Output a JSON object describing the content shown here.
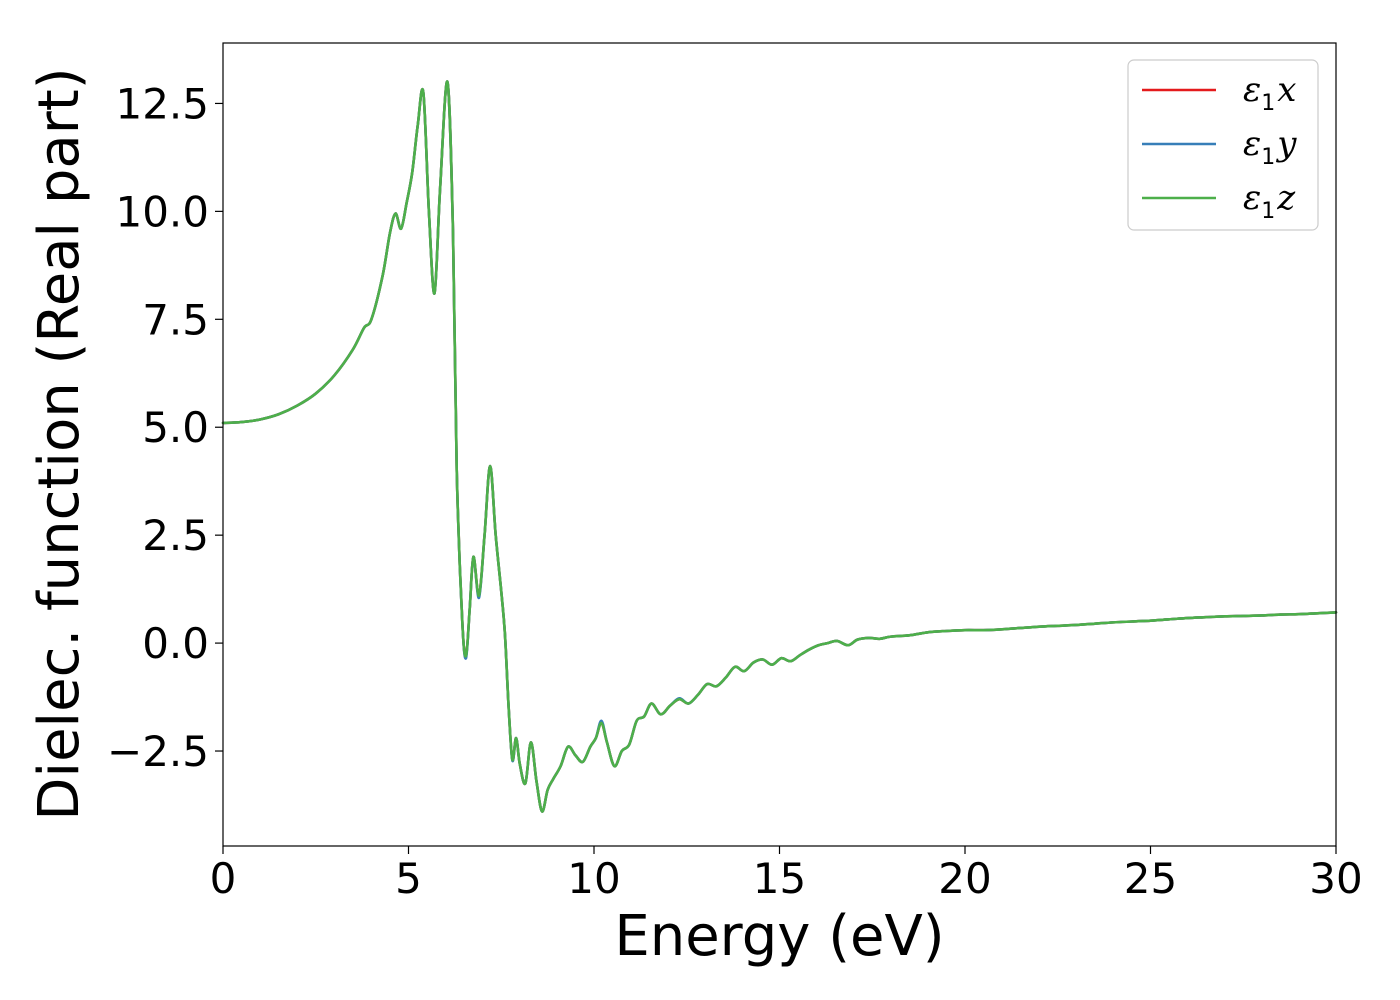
{
  "chart_data": {
    "type": "line",
    "title": "",
    "xlabel": "Energy (eV)",
    "ylabel": "Dielec. function (Real part)",
    "xlim": [
      0,
      30
    ],
    "ylim": [
      -4.7,
      13.9
    ],
    "xticks": [
      0,
      5,
      10,
      15,
      20,
      25,
      30
    ],
    "xtick_labels": [
      "0",
      "5",
      "10",
      "15",
      "20",
      "25",
      "30"
    ],
    "yticks": [
      -2.5,
      0.0,
      2.5,
      5.0,
      7.5,
      10.0,
      12.5
    ],
    "ytick_labels": [
      "−2.5",
      "0.0",
      "2.5",
      "5.0",
      "7.5",
      "10.0",
      "12.5"
    ],
    "grid": false,
    "legend_position": "top-right",
    "series": [
      {
        "name": "ε₁x",
        "legend_main": "ε",
        "legend_sub": "1",
        "legend_var": "x",
        "color": "#e41a1c",
        "x": [
          0,
          0.5,
          1.0,
          1.5,
          2.0,
          2.5,
          3.0,
          3.5,
          3.8,
          4.0,
          4.3,
          4.5,
          4.65,
          4.8,
          4.95,
          5.1,
          5.25,
          5.4,
          5.55,
          5.7,
          5.85,
          6.05,
          6.2,
          6.3,
          6.45,
          6.55,
          6.65,
          6.75,
          6.9,
          7.05,
          7.2,
          7.35,
          7.5,
          7.6,
          7.7,
          7.8,
          7.9,
          8.0,
          8.15,
          8.3,
          8.45,
          8.6,
          8.75,
          8.9,
          9.1,
          9.3,
          9.5,
          9.7,
          9.9,
          10.05,
          10.2,
          10.35,
          10.55,
          10.75,
          10.95,
          11.15,
          11.35,
          11.55,
          11.8,
          12.05,
          12.3,
          12.55,
          12.8,
          13.05,
          13.3,
          13.55,
          13.8,
          14.05,
          14.3,
          14.55,
          14.8,
          15.05,
          15.3,
          15.55,
          15.8,
          16.05,
          16.3,
          16.55,
          16.85,
          17.1,
          17.4,
          17.7,
          18.0,
          18.5,
          19.0,
          19.5,
          20.0,
          20.5,
          21.0,
          21.5,
          22.0,
          22.5,
          23.0,
          23.5,
          24.0,
          24.5,
          25.0,
          25.5,
          26.0,
          26.5,
          27.0,
          27.5,
          28.0,
          28.5,
          29.0,
          29.5,
          30.0
        ],
        "y": [
          5.1,
          5.12,
          5.18,
          5.3,
          5.5,
          5.78,
          6.2,
          6.8,
          7.3,
          7.5,
          8.5,
          9.5,
          9.95,
          9.6,
          10.2,
          10.9,
          12.0,
          12.75,
          10.0,
          8.1,
          10.5,
          13.0,
          9.5,
          4.0,
          0.5,
          -0.3,
          0.8,
          2.0,
          1.1,
          2.5,
          4.1,
          2.5,
          1.2,
          0.2,
          -1.5,
          -2.7,
          -2.2,
          -2.8,
          -3.25,
          -2.3,
          -3.2,
          -3.9,
          -3.4,
          -3.15,
          -2.85,
          -2.4,
          -2.6,
          -2.75,
          -2.4,
          -2.2,
          -1.85,
          -2.3,
          -2.85,
          -2.5,
          -2.35,
          -1.8,
          -1.7,
          -1.4,
          -1.65,
          -1.45,
          -1.3,
          -1.4,
          -1.2,
          -0.95,
          -1.0,
          -0.8,
          -0.55,
          -0.65,
          -0.45,
          -0.38,
          -0.5,
          -0.35,
          -0.42,
          -0.28,
          -0.15,
          -0.05,
          0.0,
          0.05,
          -0.05,
          0.08,
          0.12,
          0.1,
          0.15,
          0.18,
          0.25,
          0.28,
          0.3,
          0.3,
          0.32,
          0.35,
          0.38,
          0.4,
          0.42,
          0.45,
          0.48,
          0.5,
          0.52,
          0.55,
          0.58,
          0.6,
          0.62,
          0.63,
          0.64,
          0.66,
          0.67,
          0.69,
          0.71
        ]
      },
      {
        "name": "ε₁y",
        "legend_main": "ε",
        "legend_sub": "1",
        "legend_var": "y",
        "color": "#377eb8",
        "x": [
          0,
          0.5,
          1.0,
          1.5,
          2.0,
          2.5,
          3.0,
          3.5,
          3.8,
          4.0,
          4.3,
          4.5,
          4.65,
          4.8,
          4.95,
          5.1,
          5.25,
          5.4,
          5.55,
          5.7,
          5.85,
          6.05,
          6.2,
          6.3,
          6.45,
          6.55,
          6.65,
          6.75,
          6.9,
          7.05,
          7.2,
          7.35,
          7.5,
          7.6,
          7.7,
          7.8,
          7.9,
          8.0,
          8.15,
          8.3,
          8.45,
          8.6,
          8.75,
          8.9,
          9.1,
          9.3,
          9.5,
          9.7,
          9.9,
          10.05,
          10.2,
          10.35,
          10.55,
          10.75,
          10.95,
          11.15,
          11.35,
          11.55,
          11.8,
          12.05,
          12.3,
          12.55,
          12.8,
          13.05,
          13.3,
          13.55,
          13.8,
          14.05,
          14.3,
          14.55,
          14.8,
          15.05,
          15.3,
          15.55,
          15.8,
          16.05,
          16.3,
          16.55,
          16.85,
          17.1,
          17.4,
          17.7,
          18.0,
          18.5,
          19.0,
          19.5,
          20.0,
          20.5,
          21.0,
          21.5,
          22.0,
          22.5,
          23.0,
          23.5,
          24.0,
          24.5,
          25.0,
          25.5,
          26.0,
          26.5,
          27.0,
          27.5,
          28.0,
          28.5,
          29.0,
          29.5,
          30.0
        ],
        "y": [
          5.1,
          5.12,
          5.18,
          5.3,
          5.5,
          5.78,
          6.2,
          6.8,
          7.3,
          7.5,
          8.5,
          9.5,
          9.95,
          9.6,
          10.2,
          10.9,
          12.0,
          12.75,
          10.0,
          8.1,
          10.5,
          13.0,
          9.5,
          4.0,
          0.5,
          -0.35,
          0.8,
          2.0,
          1.05,
          2.5,
          4.1,
          2.5,
          1.2,
          0.2,
          -1.5,
          -2.72,
          -2.2,
          -2.8,
          -3.25,
          -2.3,
          -3.2,
          -3.9,
          -3.4,
          -3.15,
          -2.85,
          -2.4,
          -2.6,
          -2.75,
          -2.4,
          -2.2,
          -1.8,
          -2.3,
          -2.85,
          -2.5,
          -2.35,
          -1.8,
          -1.7,
          -1.4,
          -1.65,
          -1.45,
          -1.28,
          -1.4,
          -1.2,
          -0.95,
          -1.0,
          -0.8,
          -0.55,
          -0.65,
          -0.45,
          -0.38,
          -0.5,
          -0.35,
          -0.42,
          -0.28,
          -0.15,
          -0.05,
          0.0,
          0.05,
          -0.05,
          0.08,
          0.12,
          0.1,
          0.15,
          0.18,
          0.25,
          0.28,
          0.3,
          0.3,
          0.32,
          0.35,
          0.38,
          0.4,
          0.42,
          0.45,
          0.48,
          0.5,
          0.52,
          0.55,
          0.58,
          0.6,
          0.62,
          0.63,
          0.64,
          0.66,
          0.67,
          0.69,
          0.71
        ]
      },
      {
        "name": "ε₁z",
        "legend_main": "ε",
        "legend_sub": "1",
        "legend_var": "z",
        "color": "#4daf4a",
        "x": [
          0,
          0.5,
          1.0,
          1.5,
          2.0,
          2.5,
          3.0,
          3.5,
          3.8,
          4.0,
          4.3,
          4.5,
          4.65,
          4.8,
          4.95,
          5.1,
          5.25,
          5.4,
          5.55,
          5.7,
          5.85,
          6.05,
          6.2,
          6.3,
          6.45,
          6.55,
          6.65,
          6.75,
          6.9,
          7.05,
          7.2,
          7.35,
          7.5,
          7.6,
          7.7,
          7.8,
          7.9,
          8.0,
          8.15,
          8.3,
          8.45,
          8.6,
          8.75,
          8.9,
          9.1,
          9.3,
          9.5,
          9.7,
          9.9,
          10.05,
          10.2,
          10.35,
          10.55,
          10.75,
          10.95,
          11.15,
          11.35,
          11.55,
          11.8,
          12.05,
          12.3,
          12.55,
          12.8,
          13.05,
          13.3,
          13.55,
          13.8,
          14.05,
          14.3,
          14.55,
          14.8,
          15.05,
          15.3,
          15.55,
          15.8,
          16.05,
          16.3,
          16.55,
          16.85,
          17.1,
          17.4,
          17.7,
          18.0,
          18.5,
          19.0,
          19.5,
          20.0,
          20.5,
          21.0,
          21.5,
          22.0,
          22.5,
          23.0,
          23.5,
          24.0,
          24.5,
          25.0,
          25.5,
          26.0,
          26.5,
          27.0,
          27.5,
          28.0,
          28.5,
          29.0,
          29.5,
          30.0
        ],
        "y": [
          5.1,
          5.12,
          5.18,
          5.3,
          5.5,
          5.78,
          6.2,
          6.8,
          7.3,
          7.5,
          8.5,
          9.5,
          9.95,
          9.6,
          10.2,
          10.9,
          12.0,
          12.75,
          10.0,
          8.1,
          10.5,
          13.0,
          9.5,
          4.0,
          0.5,
          -0.3,
          0.8,
          2.0,
          1.1,
          2.5,
          4.1,
          2.5,
          1.2,
          0.2,
          -1.5,
          -2.7,
          -2.2,
          -2.8,
          -3.25,
          -2.3,
          -3.2,
          -3.9,
          -3.4,
          -3.15,
          -2.85,
          -2.4,
          -2.6,
          -2.75,
          -2.4,
          -2.2,
          -1.85,
          -2.3,
          -2.85,
          -2.5,
          -2.35,
          -1.8,
          -1.7,
          -1.4,
          -1.65,
          -1.45,
          -1.3,
          -1.4,
          -1.2,
          -0.95,
          -1.0,
          -0.8,
          -0.55,
          -0.65,
          -0.45,
          -0.38,
          -0.5,
          -0.35,
          -0.42,
          -0.28,
          -0.15,
          -0.05,
          0.0,
          0.05,
          -0.05,
          0.08,
          0.12,
          0.1,
          0.15,
          0.18,
          0.25,
          0.28,
          0.3,
          0.3,
          0.32,
          0.35,
          0.38,
          0.4,
          0.42,
          0.45,
          0.48,
          0.5,
          0.52,
          0.55,
          0.58,
          0.6,
          0.62,
          0.63,
          0.64,
          0.66,
          0.67,
          0.69,
          0.71
        ]
      }
    ]
  }
}
